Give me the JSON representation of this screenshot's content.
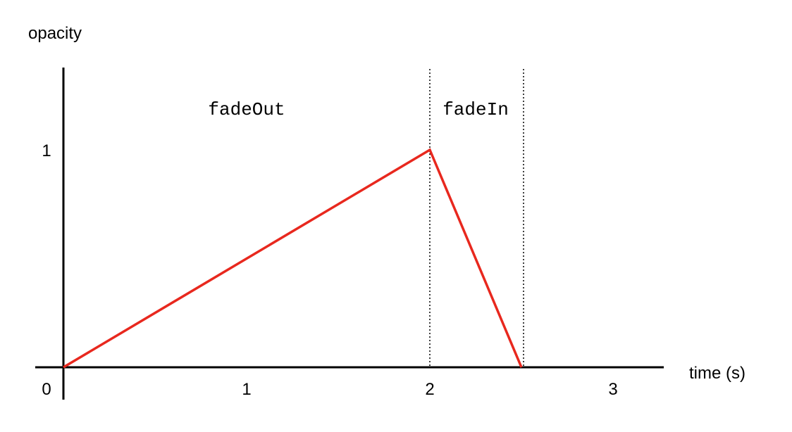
{
  "chart_data": {
    "type": "line",
    "ylabel": "opacity",
    "xlabel": "time (s)",
    "x_ticks": [
      "0",
      "1",
      "2",
      "3"
    ],
    "y_ticks": [
      "1"
    ],
    "xlim": [
      0,
      3.3
    ],
    "ylim": [
      0,
      1.4
    ],
    "series": [
      {
        "color": "#e8281e",
        "points": [
          {
            "x": 0,
            "y": 0
          },
          {
            "x": 2,
            "y": 1
          },
          {
            "x": 2.5,
            "y": 0
          }
        ]
      }
    ],
    "phase_boundaries": [
      2,
      2.5
    ],
    "annotations": [
      {
        "text": "fadeOut",
        "x": 1,
        "y": 1.2
      },
      {
        "text": "fadeIn",
        "x": 2.25,
        "y": 1.2
      }
    ],
    "grid": false
  }
}
